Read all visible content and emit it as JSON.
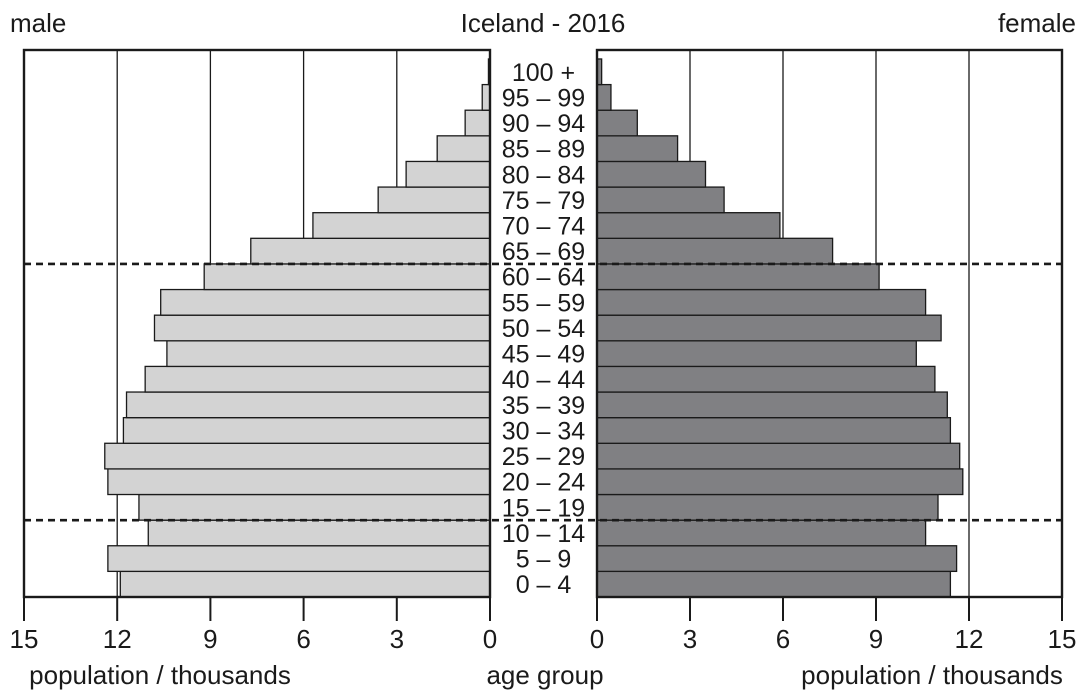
{
  "chart_data": {
    "type": "bar",
    "title": "Iceland - 2016",
    "left_header": "male",
    "right_header": "female",
    "center_xlabel": "age group",
    "left_xlabel": "population / thousands",
    "right_xlabel": "population / thousands",
    "xlim": [
      0,
      15
    ],
    "xticks": [
      "15",
      "12",
      "9",
      "6",
      "3",
      "0",
      "0",
      "3",
      "6",
      "9",
      "12",
      "15"
    ],
    "categories": [
      "0 – 4",
      "5 – 9",
      "10 – 14",
      "15 – 19",
      "20 – 24",
      "25 – 29",
      "30 – 34",
      "35 – 39",
      "40 – 44",
      "45 – 49",
      "50 – 54",
      "55 – 59",
      "60 – 64",
      "65 – 69",
      "70 – 74",
      "75 – 79",
      "80 – 84",
      "85 – 89",
      "90 – 94",
      "95 – 99",
      "100 +"
    ],
    "series": [
      {
        "name": "male",
        "color": "#d3d3d3",
        "values": [
          11.9,
          12.3,
          11.0,
          11.3,
          12.3,
          12.4,
          11.8,
          11.7,
          11.1,
          10.4,
          10.8,
          10.6,
          9.2,
          7.7,
          5.7,
          3.6,
          2.7,
          1.7,
          0.8,
          0.25,
          0.05
        ]
      },
      {
        "name": "female",
        "color": "#808083",
        "values": [
          11.4,
          11.6,
          10.6,
          11.0,
          11.8,
          11.7,
          11.4,
          11.3,
          10.9,
          10.3,
          11.1,
          10.6,
          9.1,
          7.6,
          5.9,
          4.1,
          3.5,
          2.6,
          1.3,
          0.45,
          0.15
        ]
      }
    ],
    "dashed_lines_between": [
      [
        "10 – 14",
        "15 – 19"
      ],
      [
        "60 – 64",
        "65 – 69"
      ]
    ],
    "grid": true
  }
}
